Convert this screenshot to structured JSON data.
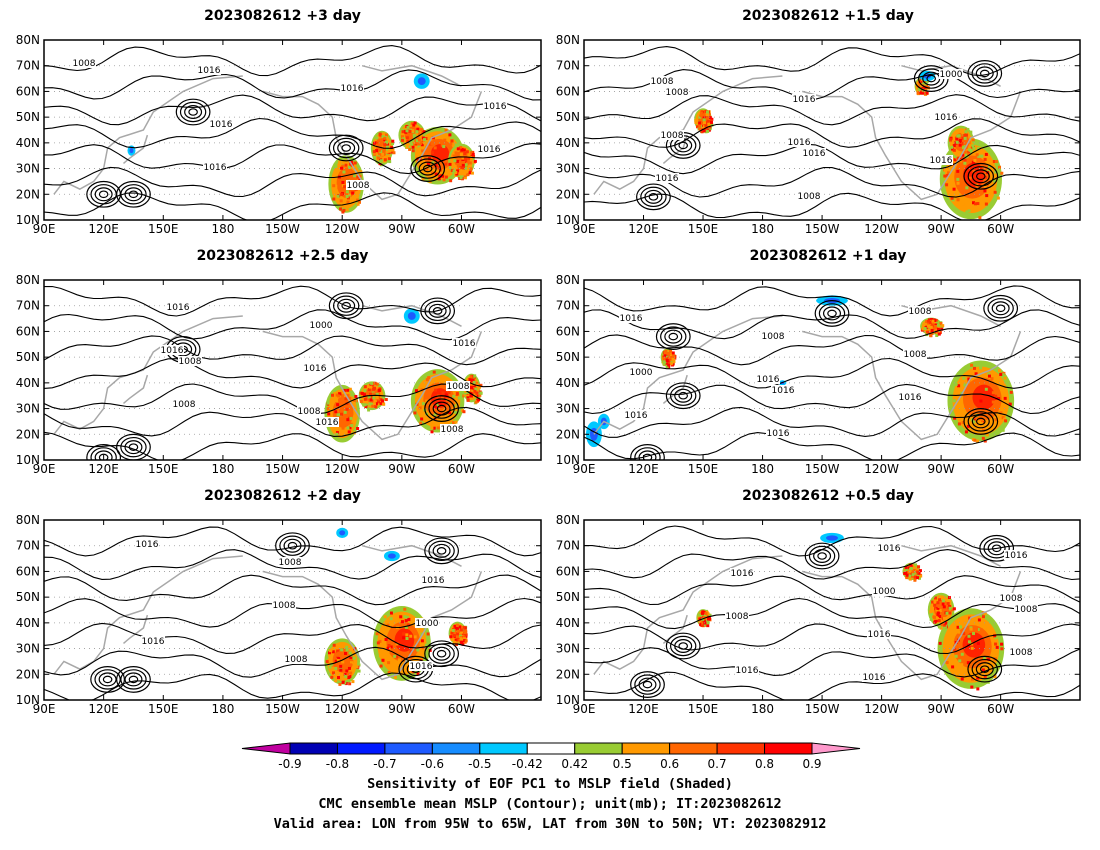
{
  "chart_data": {
    "type": "map",
    "panels": [
      {
        "title": "2023082612 +3 day",
        "contour_labels": [
          "1008",
          "1016",
          "1008",
          "1016",
          "1016",
          "1016",
          "1016",
          "1016"
        ],
        "centers": [
          [
            120,
            20
          ],
          [
            135,
            20
          ],
          [
            165,
            52
          ],
          [
            -77,
            30
          ],
          [
            -118,
            38
          ]
        ],
        "blobs": [
          [
            -72,
            35,
            12,
            10
          ],
          [
            -118,
            24,
            8,
            10
          ],
          [
            -100,
            38,
            5,
            6
          ],
          [
            -60,
            33,
            6,
            6
          ],
          [
            -85,
            43,
            6,
            5
          ]
        ],
        "neg_blobs": [
          [
            -80,
            64,
            4,
            3
          ],
          [
            134,
            37,
            2,
            2
          ]
        ]
      },
      {
        "title": "2023082612 +1.5 day",
        "contour_labels": [
          "1008",
          "1016",
          "1000",
          "1008",
          "1008",
          "1016",
          "1016",
          "1016",
          "1016",
          "1008",
          "1016"
        ],
        "centers": [
          [
            -68,
            67
          ],
          [
            -95,
            65
          ],
          [
            125,
            19
          ],
          [
            140,
            39
          ],
          [
            -70,
            27
          ]
        ],
        "blobs": [
          [
            -75,
            26,
            14,
            14
          ],
          [
            -80,
            40,
            6,
            6
          ],
          [
            150,
            49,
            4,
            4
          ],
          [
            -100,
            62,
            3,
            3
          ]
        ],
        "neg_blobs": [
          [
            -97,
            66,
            4,
            2
          ]
        ]
      },
      {
        "title": "2023082612 +2.5 day",
        "contour_labels": [
          "1008",
          "1016",
          "1016",
          "1008",
          "1000",
          "1008",
          "1016",
          "1016",
          "1008",
          "1016",
          "1008"
        ],
        "centers": [
          [
            -72,
            68
          ],
          [
            -118,
            70
          ],
          [
            160,
            53
          ],
          [
            120,
            11
          ],
          [
            135,
            15
          ],
          [
            -70,
            30
          ]
        ],
        "blobs": [
          [
            -72,
            33,
            12,
            11
          ],
          [
            -120,
            28,
            8,
            10
          ],
          [
            -105,
            35,
            6,
            5
          ],
          [
            -55,
            38,
            4,
            5
          ]
        ],
        "neg_blobs": [
          [
            -85,
            66,
            4,
            3
          ]
        ]
      },
      {
        "title": "2023082612 +1 day",
        "contour_labels": [
          "1016",
          "1008",
          "1000",
          "1016",
          "1008",
          "1016",
          "1008",
          "1016",
          "1016",
          "1016"
        ],
        "centers": [
          [
            -60,
            69
          ],
          [
            -145,
            67
          ],
          [
            135,
            58
          ],
          [
            140,
            35
          ],
          [
            122,
            11
          ],
          [
            -70,
            25
          ]
        ],
        "blobs": [
          [
            -70,
            33,
            15,
            14
          ],
          [
            -95,
            62,
            5,
            3
          ],
          [
            132,
            50,
            3,
            3
          ]
        ],
        "neg_blobs": [
          [
            -145,
            72,
            8,
            2
          ],
          [
            95,
            20,
            4,
            5
          ],
          [
            100,
            25,
            3,
            3
          ],
          [
            -170,
            40,
            2,
            1
          ]
        ]
      },
      {
        "title": "2023082612 +2 day",
        "contour_labels": [
          "1008",
          "1016",
          "1016",
          "1008",
          "1000",
          "1016",
          "1008",
          "1016"
        ],
        "centers": [
          [
            -70,
            68
          ],
          [
            -145,
            70
          ],
          [
            122,
            18
          ],
          [
            135,
            18
          ],
          [
            -83,
            22
          ],
          [
            -70,
            28
          ]
        ],
        "blobs": [
          [
            -90,
            32,
            13,
            13
          ],
          [
            -120,
            25,
            8,
            8
          ],
          [
            -62,
            36,
            4,
            4
          ]
        ],
        "neg_blobs": [
          [
            -95,
            66,
            4,
            2
          ],
          [
            -120,
            75,
            3,
            2
          ]
        ]
      },
      {
        "title": "2023082612 +0.5 day",
        "contour_labels": [
          "1016",
          "1008",
          "1016",
          "1000",
          "1008",
          "1016",
          "1016",
          "1016",
          "1008",
          "1016",
          "1008"
        ],
        "centers": [
          [
            -62,
            69
          ],
          [
            -150,
            66
          ],
          [
            122,
            16
          ],
          [
            140,
            31
          ],
          [
            -68,
            22
          ]
        ],
        "blobs": [
          [
            -75,
            30,
            15,
            14
          ],
          [
            -90,
            45,
            6,
            6
          ],
          [
            -105,
            60,
            4,
            3
          ],
          [
            150,
            42,
            3,
            3
          ]
        ],
        "neg_blobs": [
          [
            -145,
            73,
            6,
            2
          ]
        ]
      }
    ],
    "xticks": [
      "90E",
      "120E",
      "150E",
      "180",
      "150W",
      "120W",
      "90W",
      "60W"
    ],
    "yticks": [
      "80N",
      "70N",
      "60N",
      "50N",
      "40N",
      "30N",
      "20N",
      "10N"
    ],
    "xrange_deg_east": [
      90,
      340
    ],
    "yrange_deg_north": [
      10,
      80
    ],
    "colorbar": {
      "ticks": [
        "-0.9",
        "-0.8",
        "-0.7",
        "-0.6",
        "-0.5",
        "-0.42",
        "0.42",
        "0.5",
        "0.6",
        "0.7",
        "0.8",
        "0.9"
      ],
      "colors": [
        "#c0009f",
        "#0000b4",
        "#0019ff",
        "#1e5aff",
        "#168cff",
        "#00c8ff",
        "#ffffff",
        "#99cc33",
        "#ff9900",
        "#ff6600",
        "#ff3300",
        "#ff0000",
        "#ff99cc"
      ]
    }
  },
  "caption": {
    "line1": "Sensitivity of EOF PC1 to MSLP field (Shaded)",
    "line2": "CMC ensemble mean MSLP (Contour); unit(mb); IT:2023082612",
    "line3": "Valid area: LON from 95W to 65W, LAT from 30N to 50N; VT: 2023082912"
  }
}
